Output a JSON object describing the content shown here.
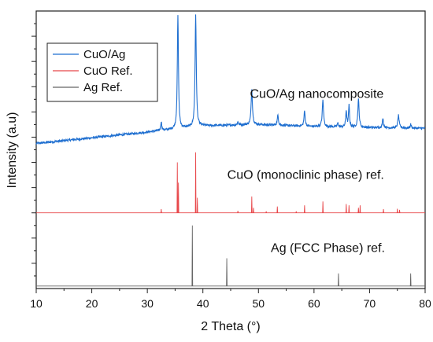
{
  "chart_data": {
    "type": "line",
    "xlabel": "2 Theta (°)",
    "ylabel": "Intensity (a.u)",
    "xlim": [
      10,
      80
    ],
    "xticks": [
      10,
      20,
      30,
      40,
      50,
      60,
      70,
      80
    ],
    "yticklabels": "hidden",
    "grid": false,
    "legend_position": "top-left",
    "annotations": [
      {
        "text": "CuO/Ag nanocomposite",
        "x": 60.5,
        "y": 75.5
      },
      {
        "text": "CuO (monoclinic phase) ref.",
        "x": 58.5,
        "y": 43.5
      },
      {
        "text": "Ag (FCC Phase) ref.",
        "x": 62.5,
        "y": 14.5
      }
    ],
    "series": [
      {
        "name": "CuO/Ag",
        "color": "#1f6fd0",
        "style": "measured",
        "baseline": [
          [
            10,
            57.5
          ],
          [
            30,
            62
          ],
          [
            40,
            64.5
          ],
          [
            50,
            65
          ],
          [
            60,
            64.2
          ],
          [
            70,
            63.8
          ],
          [
            80,
            63.5
          ]
        ],
        "peaks": [
          {
            "x": 32.5,
            "height": 3.5,
            "width": 0.22
          },
          {
            "x": 35.5,
            "height": 45,
            "width": 0.24
          },
          {
            "x": 38.7,
            "height": 44,
            "width": 0.26
          },
          {
            "x": 46.3,
            "height": 1.2,
            "width": 0.25
          },
          {
            "x": 48.8,
            "height": 14,
            "width": 0.28
          },
          {
            "x": 53.5,
            "height": 4,
            "width": 0.25
          },
          {
            "x": 58.3,
            "height": 6,
            "width": 0.25
          },
          {
            "x": 61.6,
            "height": 10.5,
            "width": 0.28
          },
          {
            "x": 64.3,
            "height": 1.5,
            "width": 0.25
          },
          {
            "x": 65.8,
            "height": 6.5,
            "width": 0.22
          },
          {
            "x": 66.3,
            "height": 8.5,
            "width": 0.22
          },
          {
            "x": 68.0,
            "height": 11,
            "width": 0.28
          },
          {
            "x": 72.4,
            "height": 3.5,
            "width": 0.25
          },
          {
            "x": 75.2,
            "height": 5,
            "width": 0.28
          },
          {
            "x": 77.4,
            "height": 1.5,
            "width": 0.25
          }
        ]
      },
      {
        "name": "CuO Ref.",
        "color": "#e8484b",
        "style": "reference",
        "baseline": [
          [
            10,
            30
          ],
          [
            80,
            30
          ]
        ],
        "peaks": [
          {
            "x": 32.5,
            "height": 1.5
          },
          {
            "x": 35.4,
            "height": 20
          },
          {
            "x": 35.6,
            "height": 12
          },
          {
            "x": 38.7,
            "height": 24
          },
          {
            "x": 39.0,
            "height": 6
          },
          {
            "x": 46.3,
            "height": 0.8
          },
          {
            "x": 48.8,
            "height": 6.5
          },
          {
            "x": 49.1,
            "height": 2
          },
          {
            "x": 51.4,
            "height": 0.6
          },
          {
            "x": 53.4,
            "height": 2.5
          },
          {
            "x": 56.8,
            "height": 0.6
          },
          {
            "x": 58.3,
            "height": 3
          },
          {
            "x": 61.6,
            "height": 4.5
          },
          {
            "x": 65.8,
            "height": 3.5
          },
          {
            "x": 66.3,
            "height": 3
          },
          {
            "x": 68.0,
            "height": 2
          },
          {
            "x": 68.3,
            "height": 3
          },
          {
            "x": 72.5,
            "height": 1.5
          },
          {
            "x": 75.0,
            "height": 1.6
          },
          {
            "x": 75.4,
            "height": 1.2
          }
        ]
      },
      {
        "name": "Ag Ref.",
        "color": "#666666",
        "style": "reference",
        "baseline": [
          [
            10,
            1
          ],
          [
            80,
            1
          ]
        ],
        "peaks": [
          {
            "x": 38.1,
            "height": 24
          },
          {
            "x": 44.3,
            "height": 11
          },
          {
            "x": 64.4,
            "height": 5
          },
          {
            "x": 77.4,
            "height": 5
          }
        ]
      }
    ]
  }
}
